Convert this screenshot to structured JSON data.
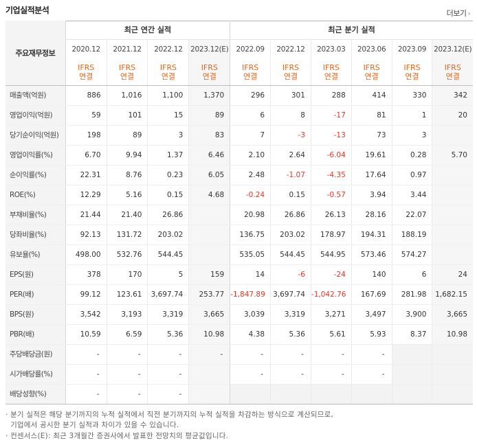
{
  "title": "기업실적분석",
  "more": {
    "label": "더보기",
    "arrow": "›"
  },
  "header": {
    "row_label": "주요재무정보",
    "annual_label": "최근 연간 실적",
    "quarter_label": "최근 분기 실적",
    "annual_periods": [
      "2020.12",
      "2021.12",
      "2022.12",
      "2023.12(E)"
    ],
    "quarter_periods": [
      "2022.09",
      "2022.12",
      "2023.03",
      "2023.06",
      "2023.09",
      "2023.12(E)"
    ],
    "basis_line1": "IFRS",
    "basis_line2": "연결"
  },
  "rows": [
    {
      "label": "매출액(억원)",
      "values": [
        "886",
        "1,016",
        "1,100",
        "1,370",
        "296",
        "301",
        "288",
        "414",
        "330",
        "342"
      ]
    },
    {
      "label": "영업이익(억원)",
      "values": [
        "59",
        "101",
        "15",
        "89",
        "6",
        "8",
        "-17",
        "81",
        "1",
        "20"
      ]
    },
    {
      "label": "당기순이익(억원)",
      "values": [
        "198",
        "89",
        "3",
        "83",
        "7",
        "-3",
        "-13",
        "73",
        "3",
        ""
      ]
    },
    {
      "label": "영업이익률(%)",
      "values": [
        "6.70",
        "9.94",
        "1.37",
        "6.46",
        "2.10",
        "2.64",
        "-6.04",
        "19.61",
        "0.28",
        "5.70"
      ]
    },
    {
      "label": "순이익률(%)",
      "values": [
        "22.31",
        "8.76",
        "0.23",
        "6.05",
        "2.48",
        "-1.07",
        "-4.35",
        "17.64",
        "0.97",
        ""
      ]
    },
    {
      "label": "ROE(%)",
      "values": [
        "12.29",
        "5.16",
        "0.15",
        "4.68",
        "-0.24",
        "0.15",
        "-0.57",
        "3.94",
        "3.44",
        ""
      ]
    },
    {
      "label": "부채비율(%)",
      "values": [
        "21.44",
        "21.40",
        "26.86",
        "",
        "20.98",
        "26.86",
        "26.13",
        "28.16",
        "22.07",
        ""
      ]
    },
    {
      "label": "당좌비율(%)",
      "values": [
        "92.13",
        "131.72",
        "203.02",
        "",
        "136.75",
        "203.02",
        "178.97",
        "194.31",
        "188.19",
        ""
      ]
    },
    {
      "label": "유보율(%)",
      "values": [
        "498.00",
        "532.76",
        "544.45",
        "",
        "535.05",
        "544.45",
        "544.95",
        "573.46",
        "574.27",
        ""
      ]
    },
    {
      "label": "EPS(원)",
      "values": [
        "378",
        "170",
        "5",
        "159",
        "14",
        "-6",
        "-24",
        "140",
        "6",
        "24"
      ]
    },
    {
      "label": "PER(배)",
      "values": [
        "99.12",
        "123.61",
        "3,697.74",
        "253.77",
        "-1,847.89",
        "3,697.74",
        "-1,042.76",
        "167.69",
        "281.98",
        "1,682.15"
      ]
    },
    {
      "label": "BPS(원)",
      "values": [
        "3,542",
        "3,193",
        "3,319",
        "3,665",
        "3,039",
        "3,319",
        "3,271",
        "3,497",
        "3,900",
        "3,665"
      ]
    },
    {
      "label": "PBR(배)",
      "values": [
        "10.59",
        "6.59",
        "5.36",
        "10.98",
        "4.38",
        "5.36",
        "5.61",
        "5.93",
        "8.37",
        "10.98"
      ]
    },
    {
      "label": "주당배당금(원)",
      "values": [
        "-",
        "-",
        "-",
        "-",
        "-",
        "-",
        "-",
        "-",
        "",
        ""
      ]
    },
    {
      "label": "시가배당률(%)",
      "values": [
        "-",
        "-",
        "-",
        "",
        "-",
        "-",
        "-",
        "-",
        "",
        ""
      ]
    },
    {
      "label": "배당성향(%)",
      "values": [
        "-",
        "-",
        "-",
        "",
        "",
        "",
        "",
        "",
        "",
        ""
      ]
    }
  ],
  "notes": [
    "· 분기 실적은 해당 분기까지의 누적 실적에서 직전 분기까지의 누적 실적을 차감하는 방식으로 계산되므로,",
    "  기업에서 공시한 분기 실적과 차이가 있을 수 있습니다.",
    "· 컨센서스(E): 최근 3개월간 증권사에서 발표한 전망치의 평균값입니다."
  ]
}
